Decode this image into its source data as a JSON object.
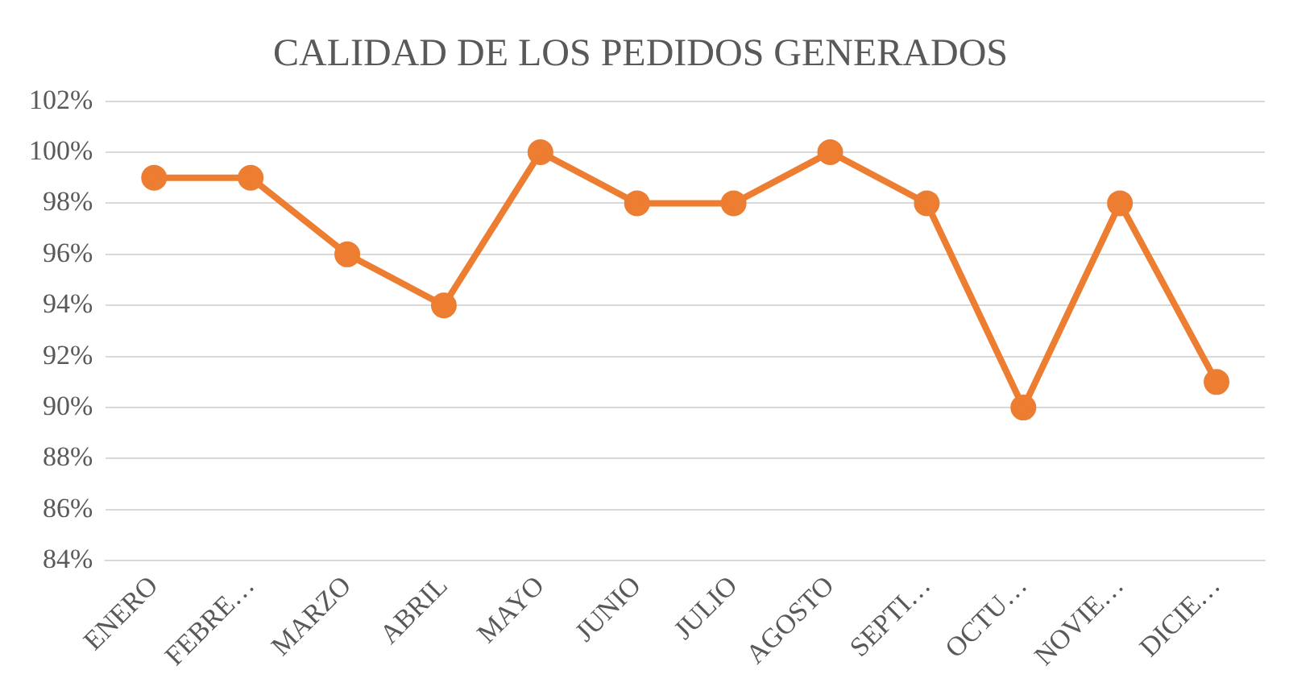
{
  "chart_data": {
    "type": "line",
    "title": "CALIDAD DE LOS PEDIDOS GENERADOS",
    "categories": [
      "ENERO",
      "FEBRE…",
      "MARZO",
      "ABRIL",
      "MAYO",
      "JUNIO",
      "JULIO",
      "AGOSTO",
      "SEPTI…",
      "OCTU…",
      "NOVIE…",
      "DICIE…"
    ],
    "series": [
      {
        "color": "#ed7d31",
        "values": [
          99,
          99,
          96,
          94,
          100,
          98,
          98,
          100,
          98,
          90,
          98,
          91
        ]
      }
    ],
    "ylim": [
      84,
      102
    ],
    "yticks": [
      {
        "value": 84,
        "label": "84%"
      },
      {
        "value": 86,
        "label": "86%"
      },
      {
        "value": 88,
        "label": "88%"
      },
      {
        "value": 90,
        "label": "90%"
      },
      {
        "value": 92,
        "label": "92%"
      },
      {
        "value": 94,
        "label": "94%"
      },
      {
        "value": 96,
        "label": "96%"
      },
      {
        "value": 98,
        "label": "98%"
      },
      {
        "value": 100,
        "label": "100%"
      },
      {
        "value": 102,
        "label": "102%"
      }
    ],
    "grid": "y",
    "legend": false,
    "marker": "circle",
    "line_style": "solid"
  }
}
